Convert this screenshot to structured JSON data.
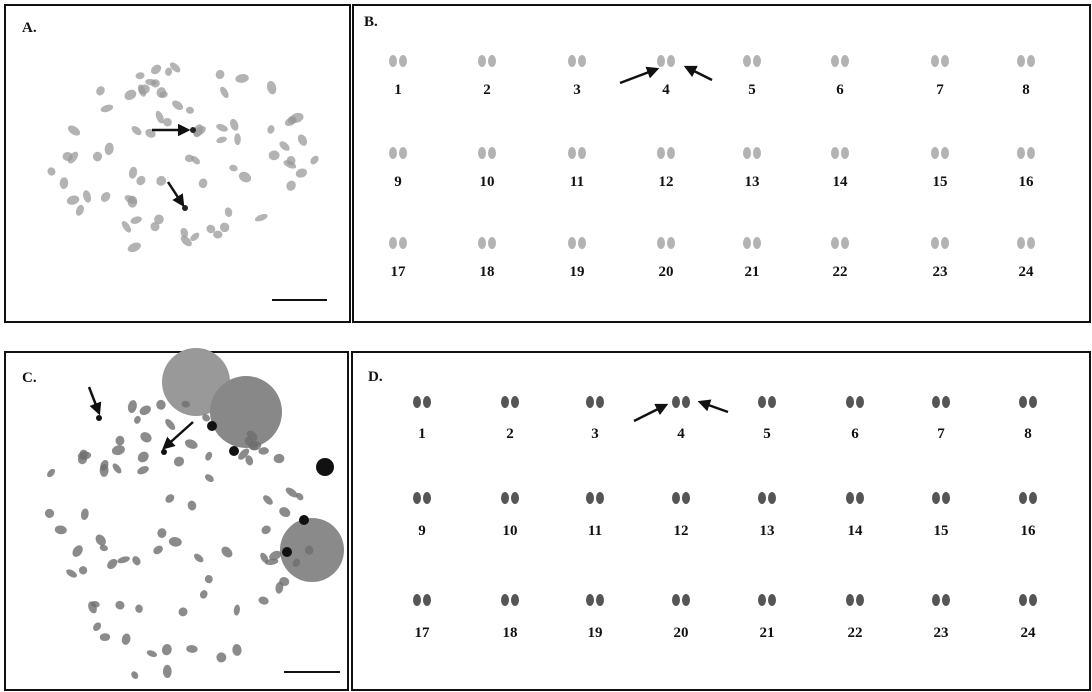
{
  "panels": [
    {
      "label": "A."
    },
    {
      "label": "B.",
      "karyotype": [
        "1",
        "2",
        "3",
        "4",
        "5",
        "6",
        "7",
        "8",
        "9",
        "10",
        "11",
        "12",
        "13",
        "14",
        "15",
        "16",
        "17",
        "18",
        "19",
        "20",
        "21",
        "22",
        "23",
        "24"
      ]
    },
    {
      "label": "C."
    },
    {
      "label": "D.",
      "karyotype": [
        "1",
        "2",
        "3",
        "4",
        "5",
        "6",
        "7",
        "8",
        "9",
        "10",
        "11",
        "12",
        "13",
        "14",
        "15",
        "16",
        "17",
        "18",
        "19",
        "20",
        "21",
        "22",
        "23",
        "24"
      ]
    }
  ]
}
